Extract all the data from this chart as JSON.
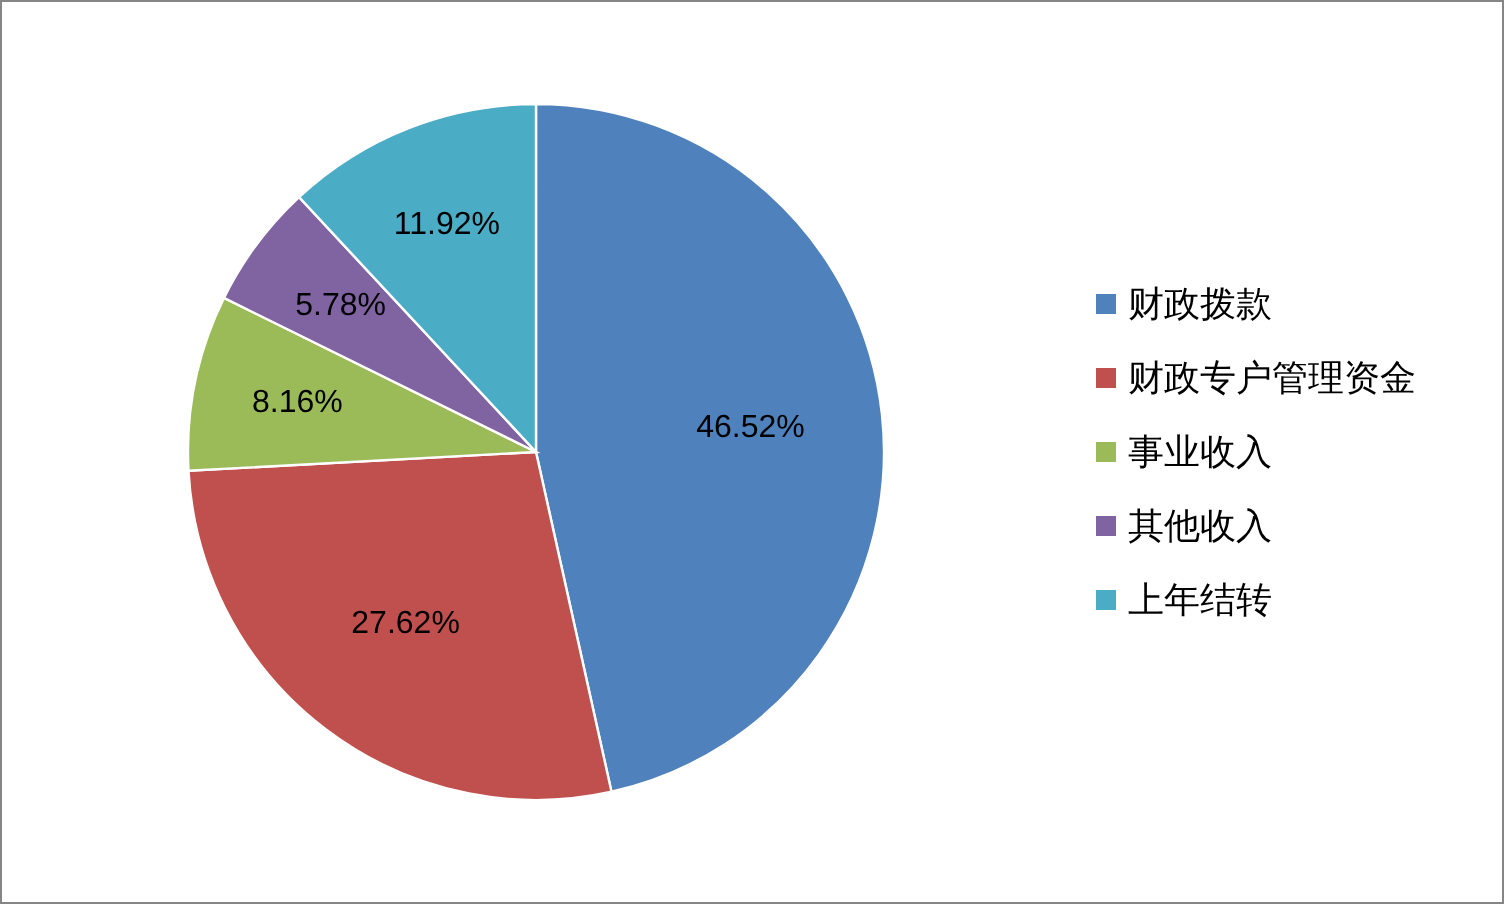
{
  "chart_data": {
    "type": "pie",
    "categories": [
      "财政拨款",
      "财政专户管理资金",
      "事业收入",
      "其他收入",
      "上年结转"
    ],
    "values": [
      46.52,
      27.62,
      8.16,
      5.78,
      11.92
    ],
    "colors": [
      "#4f81bd",
      "#c0504d",
      "#9bbb59",
      "#8064a2",
      "#4bacc6"
    ],
    "value_labels": [
      "46.52%",
      "27.62%",
      "8.16%",
      "5.78%",
      "11.92%"
    ],
    "legend": "right"
  }
}
